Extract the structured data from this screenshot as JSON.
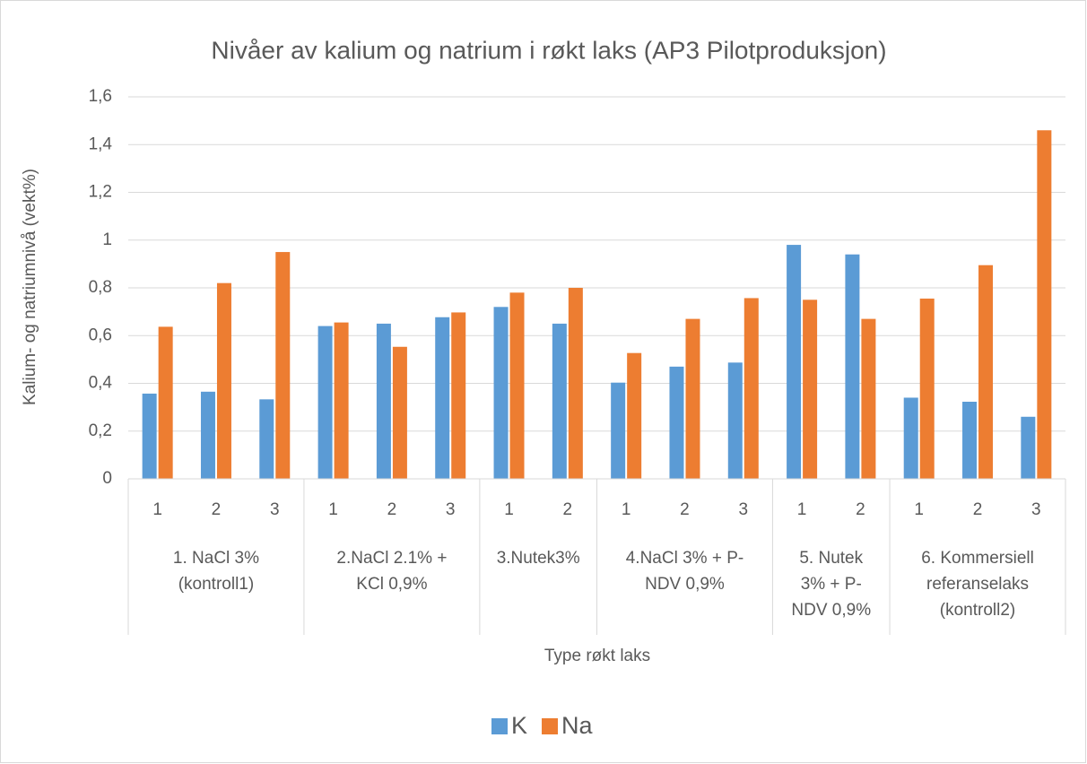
{
  "chart_data": {
    "type": "bar",
    "title": "Nivåer av kalium og natrium i røkt laks (AP3 Pilotproduksjon)",
    "x_label": "Type røkt laks",
    "y_label": "Kalium- og natriumnivå (vekt%)",
    "groups": [
      {
        "lines": [
          "1. NaCl 3%",
          "(kontroll1)"
        ],
        "categories": [
          "1",
          "2",
          "3"
        ]
      },
      {
        "lines": [
          "2.NaCl 2.1% +",
          "KCl 0,9%"
        ],
        "categories": [
          "1",
          "2",
          "3"
        ]
      },
      {
        "lines": [
          "3.Nutek3%"
        ],
        "categories": [
          "1",
          "2"
        ]
      },
      {
        "lines": [
          "4.NaCl 3% + P-",
          "NDV 0,9%"
        ],
        "categories": [
          "1",
          "2",
          "3"
        ]
      },
      {
        "lines": [
          "5. Nutek",
          "3% + P-",
          "NDV 0,9%"
        ],
        "categories": [
          "1",
          "2"
        ]
      },
      {
        "lines": [
          "6. Kommersiell",
          "referanselaks",
          "(kontroll2)"
        ],
        "categories": [
          "1",
          "2",
          "3"
        ]
      }
    ],
    "series": [
      {
        "name": "K",
        "color": "#5b9bd5",
        "values": [
          0.357,
          0.365,
          0.333,
          0.64,
          0.65,
          0.677,
          0.72,
          0.65,
          0.403,
          0.47,
          0.487,
          0.98,
          0.94,
          0.34,
          0.323,
          0.26
        ]
      },
      {
        "name": "Na",
        "color": "#ed7d31",
        "values": [
          0.637,
          0.82,
          0.95,
          0.655,
          0.553,
          0.697,
          0.78,
          0.8,
          0.527,
          0.67,
          0.757,
          0.75,
          0.67,
          0.755,
          0.895,
          1.46
        ]
      }
    ],
    "ylim": [
      0,
      1.6
    ],
    "yticks": [
      0,
      {
        "value": 0.2,
        "label": "0,2"
      },
      {
        "value": 0.4,
        "label": "0,4"
      },
      {
        "value": 0.6,
        "label": "0,6"
      },
      {
        "value": 0.8,
        "label": "0,8"
      },
      1,
      {
        "value": 1.2,
        "label": "1,2"
      },
      {
        "value": 1.4,
        "label": "1,4"
      },
      {
        "value": 1.6,
        "label": "1,6"
      }
    ],
    "grid": true,
    "legend": "bottom"
  }
}
